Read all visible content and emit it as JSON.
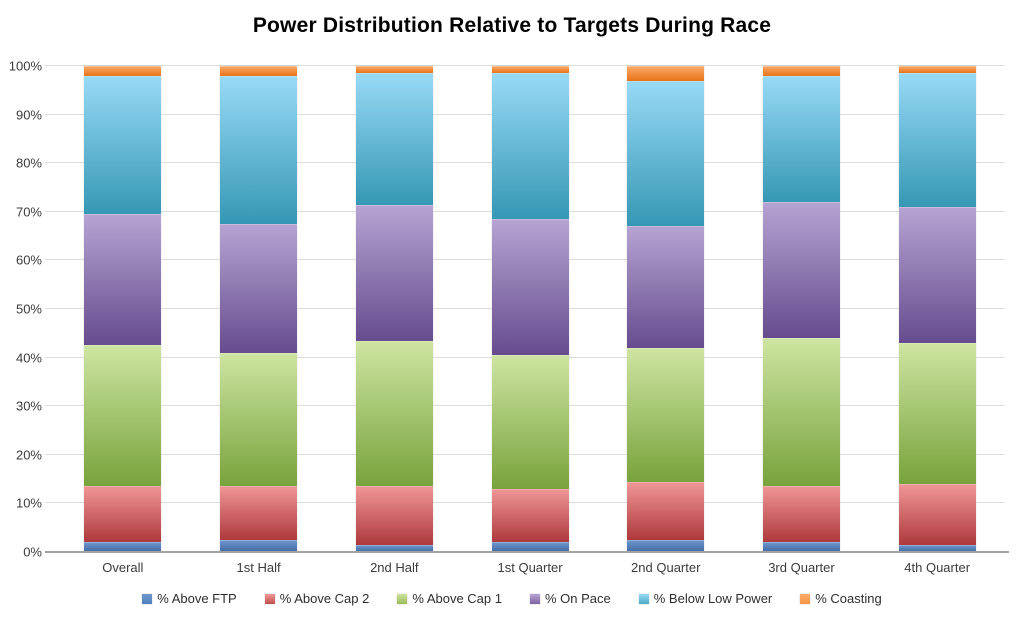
{
  "chart_data": {
    "type": "bar",
    "stacked": true,
    "title": "Power Distribution Relative to Targets During Race",
    "xlabel": "",
    "ylabel": "",
    "ylim": [
      0,
      100
    ],
    "grid": true,
    "legend_position": "bottom",
    "yticks": [
      "0%",
      "10%",
      "20%",
      "30%",
      "40%",
      "50%",
      "60%",
      "70%",
      "80%",
      "90%",
      "100%"
    ],
    "categories": [
      "Overall",
      "1st Half",
      "2nd Half",
      "1st Quarter",
      "2nd Quarter",
      "3rd Quarter",
      "4th Quarter"
    ],
    "series": [
      {
        "name": "% Above FTP",
        "color": "#4F81BD",
        "gradient": [
          "#7098CE",
          "#3F69A4"
        ],
        "values": [
          2.0,
          2.5,
          1.5,
          2.0,
          2.5,
          2.0,
          1.5
        ]
      },
      {
        "name": "% Above Cap 2",
        "color": "#C0504D",
        "gradient": [
          "#F09697",
          "#AE393C"
        ],
        "values": [
          11.5,
          11.0,
          12.0,
          11.0,
          12.0,
          11.5,
          12.5
        ]
      },
      {
        "name": "% Above Cap 1",
        "color": "#9BBB59",
        "gradient": [
          "#CEE5A2",
          "#78A33C"
        ],
        "values": [
          29.0,
          27.5,
          30.0,
          27.5,
          27.5,
          30.5,
          29.0
        ]
      },
      {
        "name": "% On Pace",
        "color": "#8064A2",
        "gradient": [
          "#B6A4D3",
          "#664C8E"
        ],
        "values": [
          27.0,
          26.5,
          28.0,
          28.0,
          25.0,
          28.0,
          28.0
        ]
      },
      {
        "name": "% Below Low Power",
        "color": "#4BACC6",
        "gradient": [
          "#98DAF6",
          "#3598B4"
        ],
        "values": [
          28.5,
          30.5,
          27.0,
          30.0,
          30.0,
          26.0,
          27.5
        ]
      },
      {
        "name": "% Coasting",
        "color": "#F79646",
        "gradient": [
          "#FAAC68",
          "#E9731B"
        ],
        "values": [
          2.0,
          2.0,
          1.5,
          1.5,
          3.0,
          2.0,
          1.5
        ]
      }
    ]
  }
}
